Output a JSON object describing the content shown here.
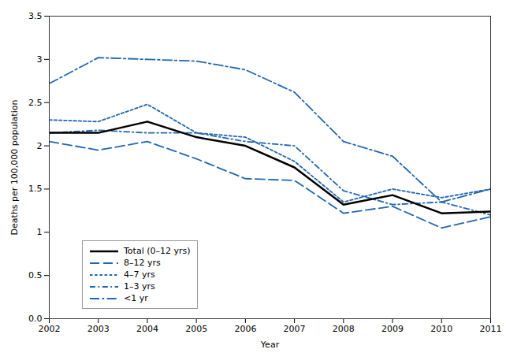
{
  "chart_data": {
    "type": "line",
    "x": [
      2002,
      2003,
      2004,
      2005,
      2006,
      2007,
      2008,
      2009,
      2010,
      2011
    ],
    "series": [
      {
        "name": "Total (0–12 yrs)",
        "color": "#000000",
        "line_style": "solid",
        "values": [
          2.15,
          2.15,
          2.28,
          2.1,
          2.0,
          1.75,
          1.32,
          1.43,
          1.22,
          1.24
        ]
      },
      {
        "name": "8–12 yrs",
        "color": "#2167b0",
        "line_style": "long_dash",
        "values": [
          2.05,
          1.95,
          2.05,
          1.85,
          1.62,
          1.6,
          1.22,
          1.3,
          1.05,
          1.18
        ]
      },
      {
        "name": "4–7 yrs",
        "color": "#2167b0",
        "line_style": "dotted",
        "values": [
          2.3,
          2.28,
          2.48,
          2.15,
          2.1,
          1.82,
          1.35,
          1.5,
          1.4,
          1.5
        ]
      },
      {
        "name": "1–3 yrs",
        "color": "#2167b0",
        "line_style": "dash_dot",
        "values": [
          2.15,
          2.18,
          2.15,
          2.15,
          2.05,
          2.0,
          1.48,
          1.32,
          1.35,
          1.2
        ]
      },
      {
        "name": "<1 yr",
        "color": "#2167b0",
        "line_style": "long_dash_dot",
        "values": [
          2.72,
          3.02,
          3.0,
          2.98,
          2.88,
          2.62,
          2.05,
          1.88,
          1.35,
          1.5
        ]
      }
    ],
    "xlabel": "Year",
    "ylabel": "Deaths per 100,000 population",
    "xlim": [
      2002,
      2011
    ],
    "xticks": [
      2002,
      2003,
      2004,
      2005,
      2006,
      2007,
      2008,
      2009,
      2010,
      2011
    ],
    "ylim": [
      0,
      3.5
    ],
    "yticks": [
      {
        "value": 0,
        "label": "0.0"
      },
      0.5,
      1,
      1.5,
      2,
      2.5,
      3,
      3.5
    ],
    "legend": "lower left",
    "grid": false
  }
}
